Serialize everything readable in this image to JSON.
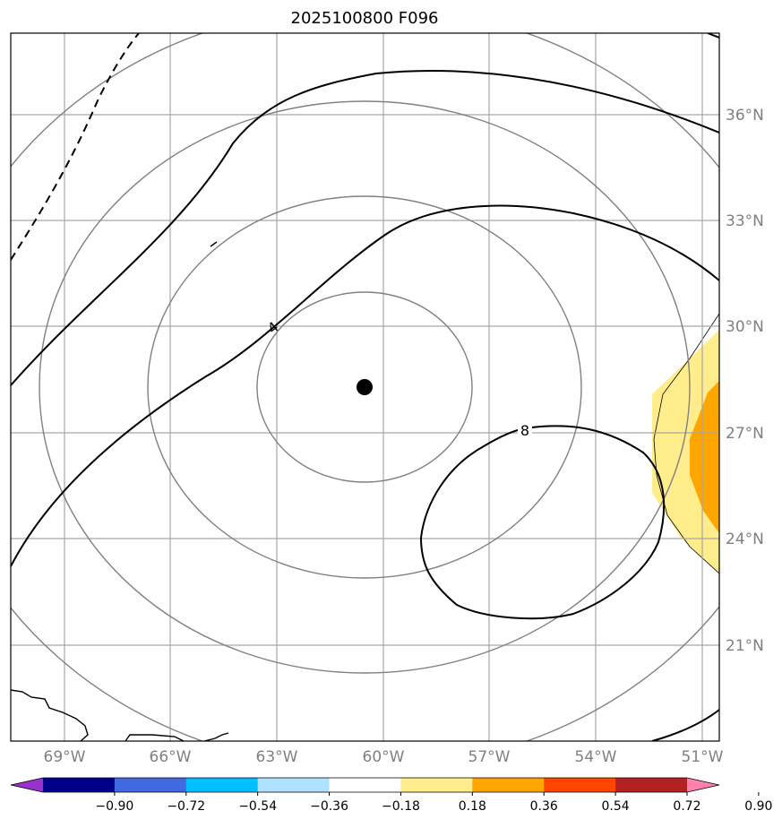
{
  "title": "2025100800 F096",
  "map": {
    "lon_ticks": [
      "69°W",
      "66°W",
      "63°W",
      "60°W",
      "57°W",
      "54°W",
      "51°W"
    ],
    "lat_ticks": [
      "36°N",
      "33°N",
      "30°N",
      "27°N",
      "24°N",
      "21°N"
    ],
    "contour_labels": [
      "4",
      "8"
    ],
    "center_marker": "storm-center-dot"
  },
  "colorbar": {
    "colors": [
      "#9932CC",
      "#00008B",
      "#4169E1",
      "#00BFFF",
      "#B0E2FF",
      "#FFFFFF",
      "#FFEC8B",
      "#FFA500",
      "#FF4500",
      "#B22222",
      "#FF82AB"
    ],
    "tick_labels": [
      "−0.90",
      "−0.72",
      "−0.54",
      "−0.36",
      "−0.18",
      "0.18",
      "0.36",
      "0.54",
      "0.72",
      "0.90"
    ]
  }
}
